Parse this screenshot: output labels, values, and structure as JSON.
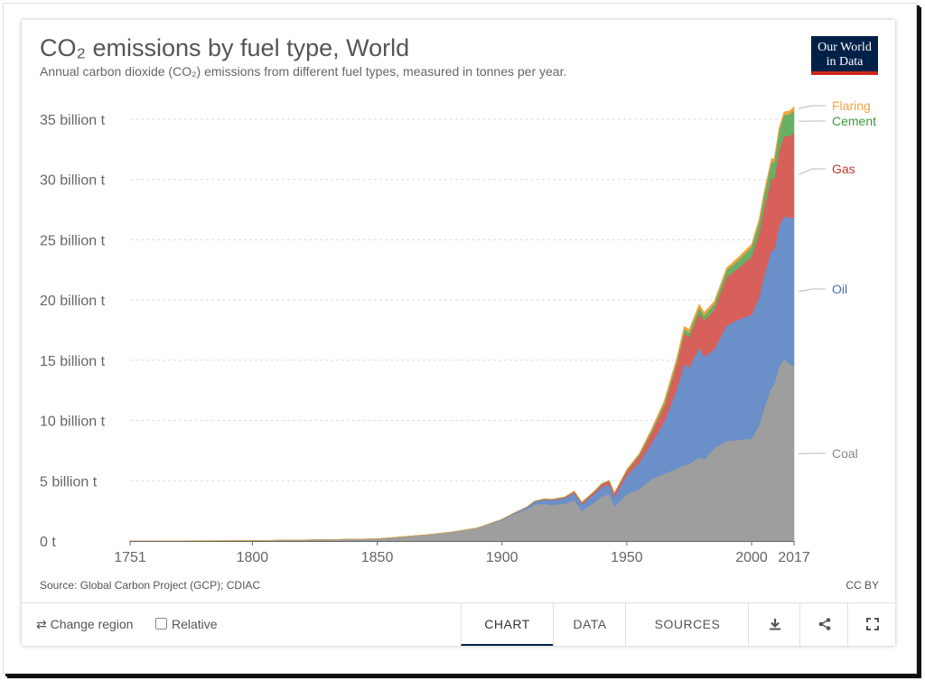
{
  "header": {
    "title": "CO₂ emissions by fuel type, World",
    "subtitle": "Annual carbon dioxide (CO₂) emissions from different fuel types, measured in tonnes per year."
  },
  "logo": {
    "line1": "Our World",
    "line2": "in Data"
  },
  "footer": {
    "source": "Source: Global Carbon Project (GCP); CDIAC",
    "license": "CC BY"
  },
  "controls": {
    "change_region": "Change region",
    "relative": "Relative",
    "tabs": [
      {
        "label": "CHART",
        "active": true
      },
      {
        "label": "DATA",
        "active": false
      },
      {
        "label": "SOURCES",
        "active": false
      }
    ],
    "icons": [
      "download-icon",
      "share-icon",
      "fullscreen-icon"
    ]
  },
  "chart_data": {
    "type": "area",
    "stacked": true,
    "x_ticks": [
      "1751",
      "1800",
      "1850",
      "1900",
      "1950",
      "2000",
      "2017"
    ],
    "y_ticks": [
      "0 t",
      "5 billion t",
      "10 billion t",
      "15 billion t",
      "20 billion t",
      "25 billion t",
      "30 billion t",
      "35 billion t"
    ],
    "ylim": [
      0,
      36.5
    ],
    "xlim": [
      1751,
      2017
    ],
    "grid": "horizontal-dashed",
    "legend": "right-inline-labels",
    "x": [
      1751,
      1800,
      1850,
      1870,
      1880,
      1890,
      1900,
      1905,
      1910,
      1913,
      1917,
      1920,
      1925,
      1929,
      1932,
      1937,
      1940,
      1943,
      1945,
      1950,
      1955,
      1960,
      1965,
      1970,
      1973,
      1975,
      1979,
      1981,
      1985,
      1990,
      1995,
      2000,
      2003,
      2005,
      2008,
      2009,
      2011,
      2013,
      2015,
      2017
    ],
    "series": [
      {
        "name": "Coal",
        "color": "#9e9e9e",
        "values": [
          0.01,
          0.03,
          0.18,
          0.52,
          0.75,
          1.07,
          1.75,
          2.25,
          2.64,
          3.03,
          3.1,
          3.0,
          3.1,
          3.4,
          2.5,
          3.2,
          3.7,
          3.9,
          2.9,
          3.9,
          4.3,
          5.15,
          5.6,
          6.0,
          6.3,
          6.4,
          6.95,
          6.8,
          7.7,
          8.3,
          8.4,
          8.5,
          9.6,
          11.0,
          12.8,
          12.9,
          14.5,
          15.1,
          14.7,
          14.5
        ]
      },
      {
        "name": "Oil",
        "color": "#6a8fc9",
        "values": [
          0,
          0,
          0,
          0,
          0,
          0.01,
          0.04,
          0.08,
          0.16,
          0.23,
          0.35,
          0.4,
          0.45,
          0.57,
          0.55,
          0.7,
          0.8,
          0.8,
          0.75,
          1.55,
          2.2,
          3.0,
          4.3,
          6.6,
          8.4,
          8.0,
          9.1,
          8.5,
          8.2,
          9.6,
          10.0,
          10.3,
          10.6,
          11.0,
          11.4,
          11.2,
          11.6,
          11.9,
          12.1,
          12.4
        ]
      },
      {
        "name": "Gas",
        "color": "#d8605b",
        "values": [
          0,
          0,
          0,
          0,
          0,
          0,
          0.01,
          0.01,
          0.02,
          0.03,
          0.04,
          0.05,
          0.07,
          0.13,
          0.14,
          0.19,
          0.23,
          0.28,
          0.3,
          0.36,
          0.58,
          0.85,
          1.3,
          2.0,
          2.5,
          2.55,
          2.9,
          3.0,
          3.3,
          4.0,
          4.3,
          4.8,
          5.3,
          5.6,
          6.0,
          5.9,
          6.3,
          6.6,
          6.8,
          7.0
        ]
      },
      {
        "name": "Cement",
        "color": "#67b064",
        "values": [
          0,
          0,
          0,
          0,
          0,
          0,
          0.01,
          0.01,
          0.02,
          0.02,
          0.02,
          0.02,
          0.03,
          0.04,
          0.03,
          0.05,
          0.05,
          0.05,
          0.04,
          0.09,
          0.13,
          0.18,
          0.24,
          0.31,
          0.35,
          0.36,
          0.41,
          0.42,
          0.46,
          0.57,
          0.68,
          0.8,
          0.95,
          1.1,
          1.3,
          1.4,
          1.6,
          1.75,
          1.8,
          1.85
        ]
      },
      {
        "name": "Flaring",
        "color": "#f1a340",
        "values": [
          0,
          0,
          0,
          0,
          0,
          0,
          0,
          0,
          0,
          0,
          0,
          0,
          0,
          0,
          0,
          0,
          0,
          0,
          0,
          0.04,
          0.06,
          0.15,
          0.2,
          0.25,
          0.26,
          0.24,
          0.3,
          0.25,
          0.22,
          0.2,
          0.22,
          0.23,
          0.26,
          0.27,
          0.27,
          0.25,
          0.25,
          0.26,
          0.27,
          0.28
        ]
      }
    ]
  }
}
